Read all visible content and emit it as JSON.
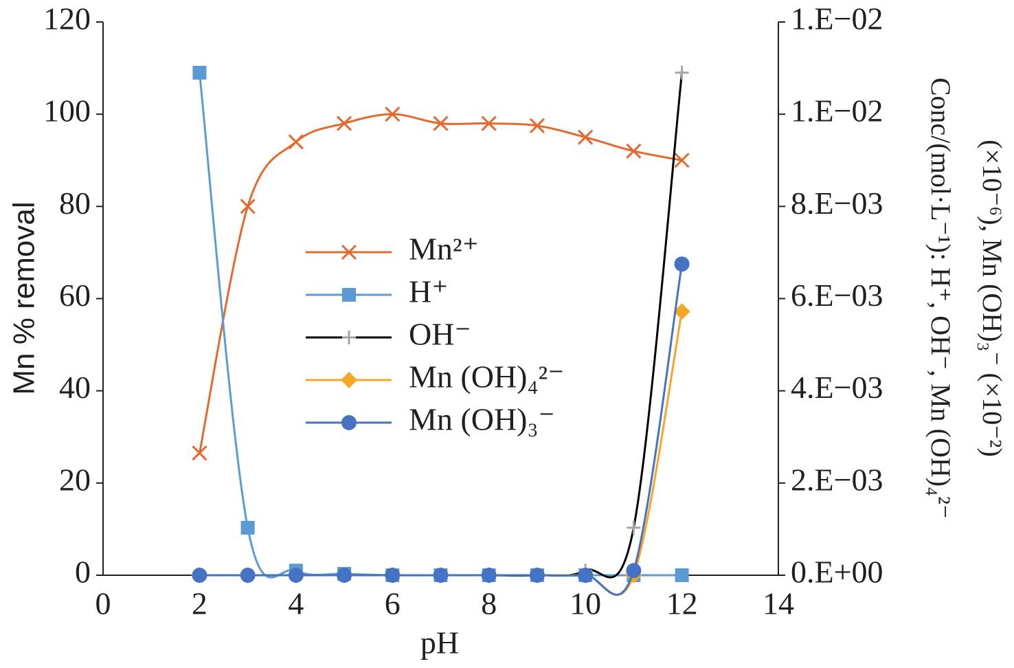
{
  "chart_data": {
    "type": "line",
    "xlabel": "pH",
    "ylabel": "Mn % removal",
    "y2label": [
      "Conc/(mol·L⁻¹): H⁺, OH⁻, Mn (OH)₄²⁻",
      "(×10⁻⁶), Mn (OH)₃⁻ (×10⁻²)"
    ],
    "x": [
      2,
      3,
      4,
      5,
      6,
      7,
      8,
      9,
      10,
      11,
      12
    ],
    "xlim": [
      0,
      14
    ],
    "xticks": [
      0,
      2,
      4,
      6,
      8,
      10,
      12,
      14
    ],
    "ylim": [
      0,
      120
    ],
    "yticks": [
      0,
      20,
      40,
      60,
      80,
      100,
      120
    ],
    "y2lim": [
      0,
      0.012
    ],
    "y2ticks": [
      {
        "value": 0,
        "label": "0.E+00"
      },
      {
        "value": 0.002,
        "label": "2.E−03"
      },
      {
        "value": 0.004,
        "label": "4.E−03"
      },
      {
        "value": 0.006,
        "label": "6.E−03"
      },
      {
        "value": 0.008,
        "label": "8.E−03"
      },
      {
        "value": 0.01,
        "label": "1.E−02"
      },
      {
        "value": 0.012,
        "label": "1.E−02"
      }
    ],
    "series": [
      {
        "name": "Mn²⁺",
        "color": "#e5682c",
        "marker": "x",
        "values": [
          26.5,
          80,
          94,
          98,
          100,
          98,
          98,
          97.5,
          95,
          92,
          90
        ]
      },
      {
        "name": "H⁺",
        "color": "#5b9bd5",
        "marker": "square",
        "axis": "y2",
        "values": [
          0.0109,
          0.00103,
          0.0001,
          3e-05,
          0,
          0,
          0,
          0,
          0,
          0,
          0
        ]
      },
      {
        "name": "OH⁻",
        "color": "#a5a5a5",
        "line_color": "#000000",
        "marker": "plus",
        "axis": "y2",
        "values": [
          0,
          0,
          0,
          0,
          0,
          0,
          0,
          0,
          0.0001,
          0.00103,
          0.0109
        ]
      },
      {
        "name": "Mn (OH)₄²⁻",
        "color": "#f5a623",
        "marker": "diamond",
        "axis": "y2",
        "values": [
          0,
          0,
          0,
          0,
          0,
          0,
          0,
          0,
          0,
          0,
          0.00572
        ]
      },
      {
        "name": "Mn (OH)₃⁻",
        "color": "#4472c4",
        "marker": "circle",
        "axis": "y2",
        "values": [
          0,
          0,
          0,
          0,
          0,
          0,
          0,
          0,
          0,
          0.0001,
          0.00675
        ]
      }
    ]
  }
}
